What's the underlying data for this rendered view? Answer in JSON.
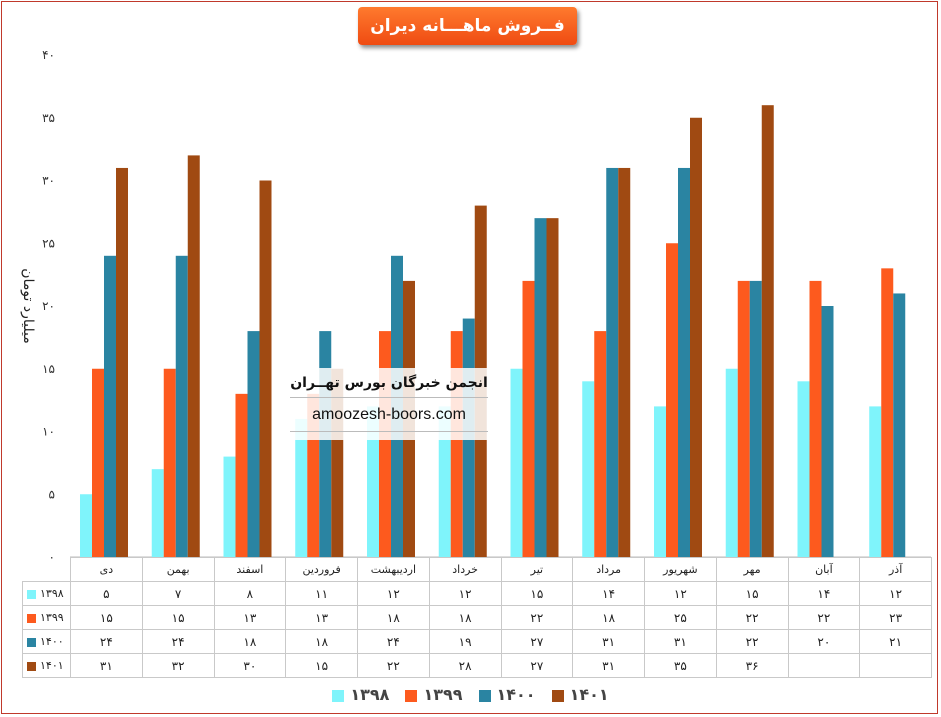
{
  "chart_data": {
    "type": "bar",
    "title": "فــروش ماهـــانه دیران",
    "ylabel": "میلیارد تومان",
    "ylim": [
      0,
      40
    ],
    "yticks": [
      "۰",
      "۵",
      "۱۰",
      "۱۵",
      "۲۰",
      "۲۵",
      "۳۰",
      "۳۵",
      "۴۰"
    ],
    "categories": [
      "دی",
      "بهمن",
      "اسفند",
      "فروردین",
      "اردیبهشت",
      "خرداد",
      "تیر",
      "مرداد",
      "شهریور",
      "مهر",
      "آبان",
      "آذر"
    ],
    "series": [
      {
        "name": "۱۳۹۸",
        "color": "#7ff4fb",
        "values": [
          5,
          7,
          8,
          11,
          12,
          12,
          15,
          14,
          12,
          15,
          14,
          12
        ],
        "labels": [
          "۵",
          "۷",
          "۸",
          "۱۱",
          "۱۲",
          "۱۲",
          "۱۵",
          "۱۴",
          "۱۲",
          "۱۵",
          "۱۴",
          "۱۲"
        ]
      },
      {
        "name": "۱۳۹۹",
        "color": "#fd5a1e",
        "values": [
          15,
          15,
          13,
          13,
          18,
          18,
          22,
          18,
          25,
          22,
          22,
          23
        ],
        "labels": [
          "۱۵",
          "۱۵",
          "۱۳",
          "۱۳",
          "۱۸",
          "۱۸",
          "۲۲",
          "۱۸",
          "۲۵",
          "۲۲",
          "۲۲",
          "۲۳"
        ]
      },
      {
        "name": "۱۴۰۰",
        "color": "#2a84a2",
        "values": [
          24,
          24,
          18,
          18,
          24,
          19,
          27,
          31,
          31,
          22,
          20,
          21
        ],
        "labels": [
          "۲۴",
          "۲۴",
          "۱۸",
          "۱۸",
          "۲۴",
          "۱۹",
          "۲۷",
          "۳۱",
          "۳۱",
          "۲۲",
          "۲۰",
          "۲۱"
        ]
      },
      {
        "name": "۱۴۰۱",
        "color": "#a04a12",
        "values": [
          31,
          32,
          30,
          15,
          22,
          28,
          27,
          31,
          35,
          36,
          null,
          null
        ],
        "labels": [
          "۳۱",
          "۳۲",
          "۳۰",
          "۱۵",
          "۲۲",
          "۲۸",
          "۲۷",
          "۳۱",
          "۳۵",
          "۳۶",
          "",
          ""
        ]
      }
    ],
    "legend_position": "bottom",
    "grid": false
  },
  "watermark": {
    "name": "انجمن خبرگان بورس تهــران",
    "url": "amoozesh-boors.com"
  }
}
